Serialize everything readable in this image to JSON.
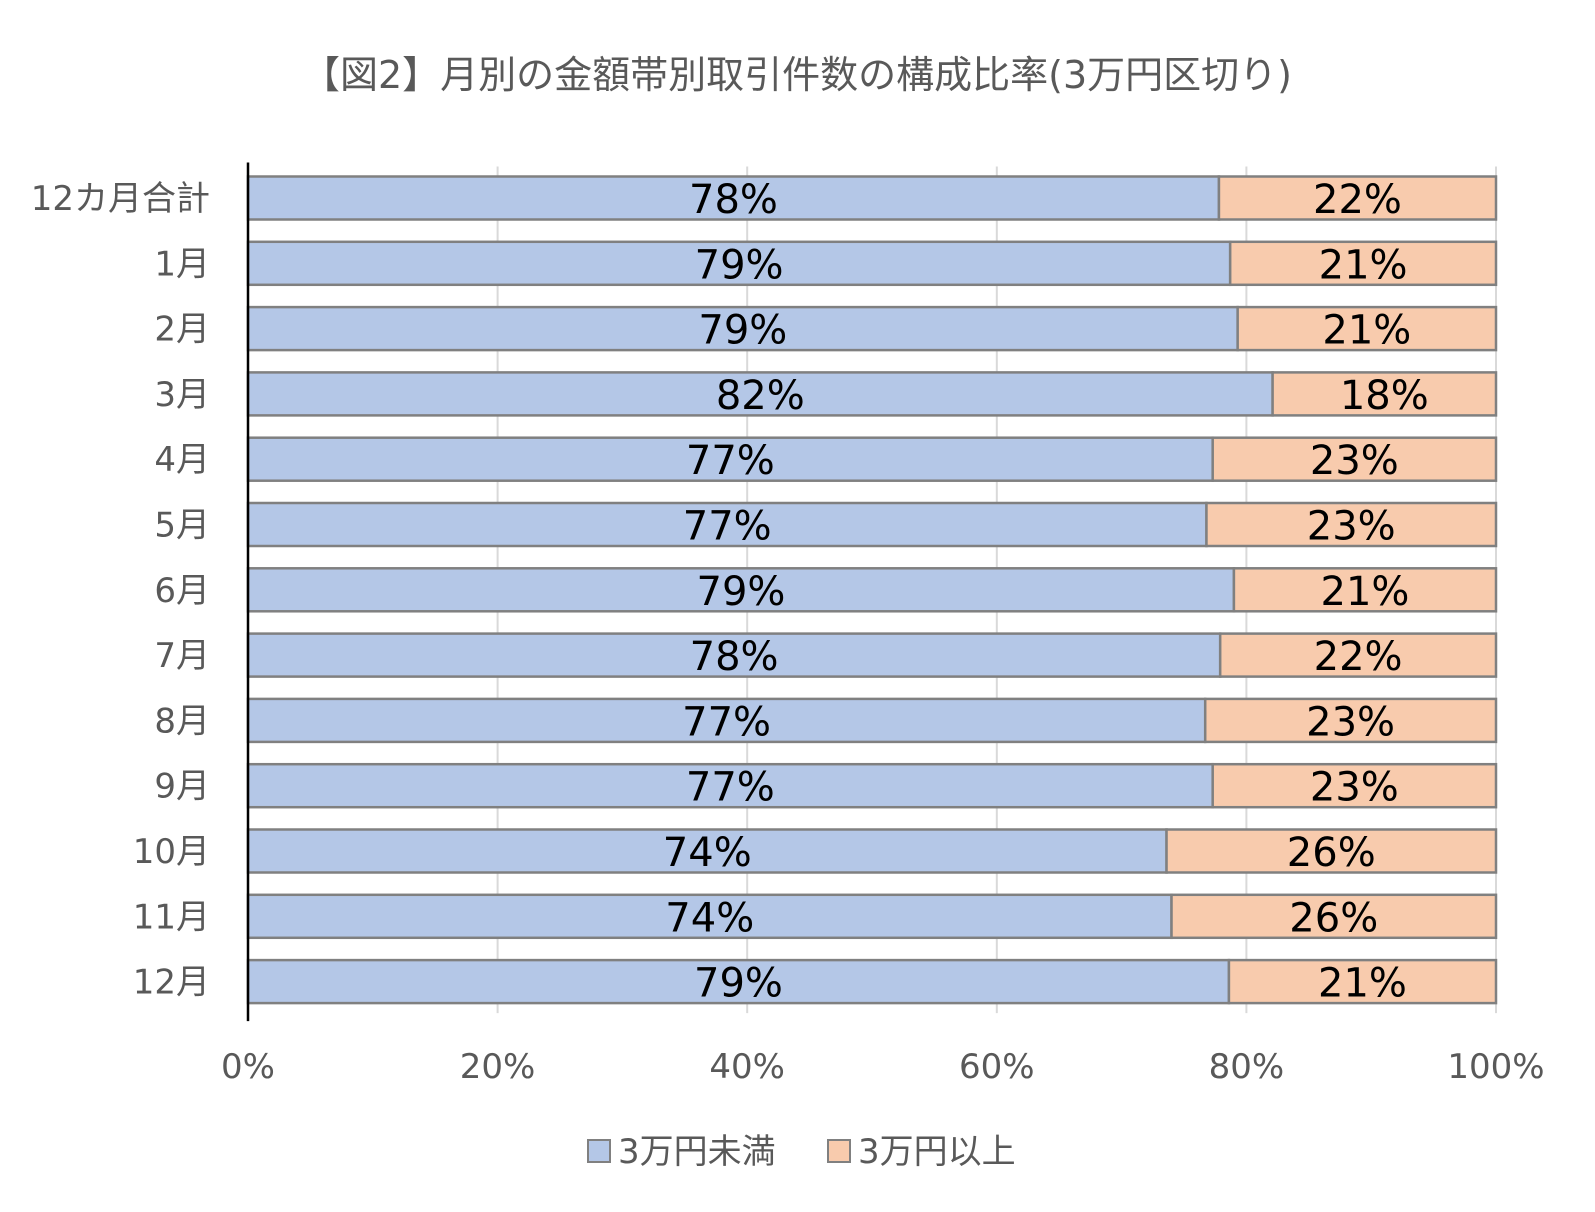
{
  "chart_data": {
    "type": "bar",
    "orientation": "horizontal",
    "stacked": "percent",
    "title": "【図2】月別の金額帯別取引件数の構成比率(3万円区切り)",
    "categories": [
      "12カ月合計",
      "1月",
      "2月",
      "3月",
      "4月",
      "5月",
      "6月",
      "7月",
      "8月",
      "9月",
      "10月",
      "11月",
      "12月"
    ],
    "series": [
      {
        "name": "3万円未満",
        "color": "#b4c7e7",
        "values": [
          77.8,
          78.7,
          79.3,
          82.1,
          77.3,
          76.8,
          79.0,
          77.9,
          76.7,
          77.3,
          73.6,
          74.0,
          78.6
        ],
        "labels": [
          "78%",
          "79%",
          "79%",
          "82%",
          "77%",
          "77%",
          "79%",
          "78%",
          "77%",
          "77%",
          "74%",
          "74%",
          "79%"
        ]
      },
      {
        "name": "3万円以上",
        "color": "#f8cbad",
        "values": [
          22.2,
          21.3,
          20.7,
          17.9,
          22.7,
          23.2,
          21.0,
          22.1,
          23.3,
          22.7,
          26.4,
          26.0,
          21.4
        ],
        "labels": [
          "22%",
          "21%",
          "21%",
          "18%",
          "23%",
          "23%",
          "21%",
          "22%",
          "23%",
          "23%",
          "26%",
          "26%",
          "21%"
        ]
      }
    ],
    "xlim": [
      0,
      100
    ],
    "xticks": [
      "0%",
      "20%",
      "40%",
      "60%",
      "80%",
      "100%"
    ],
    "grid": true,
    "legend": "bottom"
  }
}
